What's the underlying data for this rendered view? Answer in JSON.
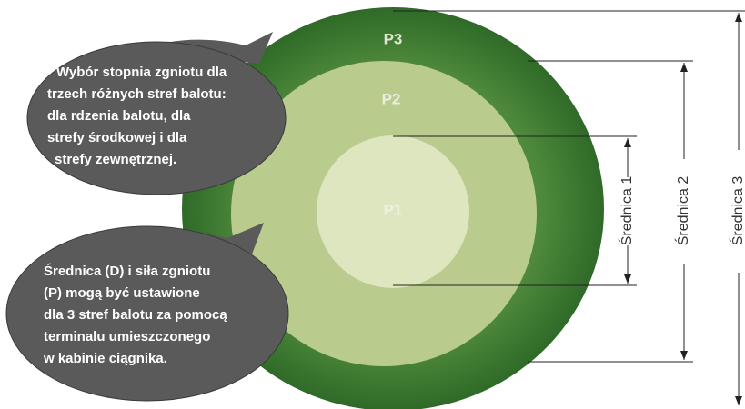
{
  "zones": [
    {
      "label": "P1"
    },
    {
      "label": "P2"
    },
    {
      "label": "P3"
    }
  ],
  "diameters": [
    {
      "label": "Średnica 1"
    },
    {
      "label": "Średnica 2"
    },
    {
      "label": "Średnica 3"
    }
  ],
  "callouts": [
    {
      "lines": [
        "Wybór stopnia zgniotu dla",
        "trzech różnych stref balotu:",
        "dla rdzenia balotu, dla",
        "strefy środkowej i dla",
        "strefy zewnętrznej."
      ]
    },
    {
      "lines": [
        "Średnica (D) i siła zgniotu",
        "(P) mogą być ustawione",
        "dla 3 stref balotu za pomocą",
        "terminalu umieszczonego",
        "w kabinie ciągnika."
      ]
    }
  ]
}
